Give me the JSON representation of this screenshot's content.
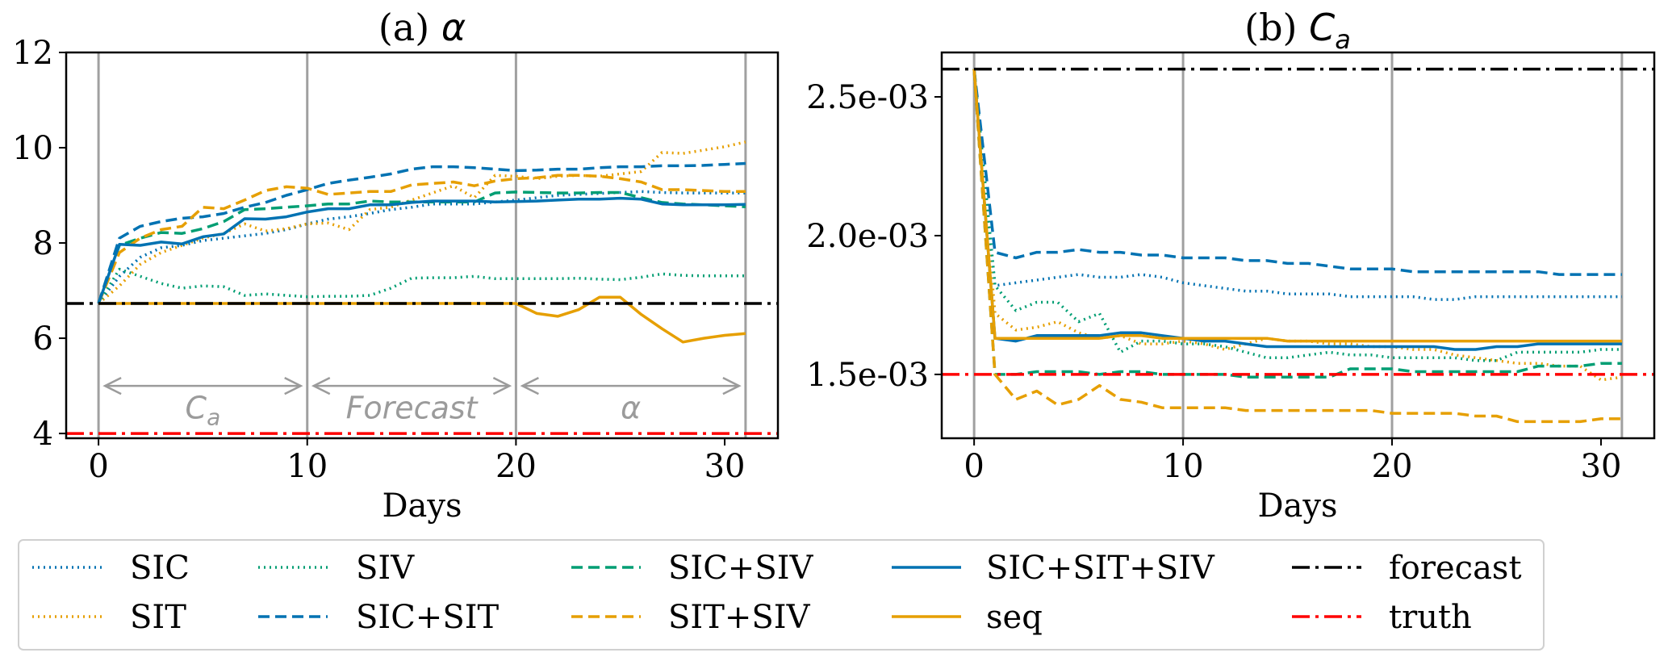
{
  "figure": {
    "legend": {
      "placement": "bottom",
      "columns": 6,
      "entries": [
        {
          "key": "SIC",
          "label": "SIC",
          "color": "#0072B2",
          "style": "dotted"
        },
        {
          "key": "SIT",
          "label": "SIT",
          "color": "#E69F00",
          "style": "dotted"
        },
        {
          "key": "SIV",
          "label": "SIV",
          "color": "#009E73",
          "style": "dotted"
        },
        {
          "key": "SIC+SIT",
          "label": "SIC+SIT",
          "color": "#0072B2",
          "style": "dashed"
        },
        {
          "key": "SIC+SIV",
          "label": "SIC+SIV",
          "color": "#009E73",
          "style": "dashed"
        },
        {
          "key": "SIT+SIV",
          "label": "SIT+SIV",
          "color": "#E69F00",
          "style": "dashed"
        },
        {
          "key": "SIC+SIT+SIV",
          "label": "SIC+SIT+SIV",
          "color": "#0072B2",
          "style": "solid"
        },
        {
          "key": "seq",
          "label": "seq",
          "color": "#E69F00",
          "style": "solid"
        },
        {
          "key": "forecast",
          "label": "forecast",
          "color": "#000000",
          "style": "dashdot"
        },
        {
          "key": "truth",
          "label": "truth",
          "color": "#FF0000",
          "style": "dashdot"
        }
      ]
    }
  },
  "chart_data": [
    {
      "type": "line",
      "id": "alpha",
      "title_prefix": "(a) ",
      "title_symbol": "α",
      "title_subscript": "",
      "xlabel": "Days",
      "ylabel": "",
      "xlim": [
        -1.55,
        32.55
      ],
      "ylim": [
        3.9,
        12
      ],
      "xticks": [
        0,
        10,
        20,
        30
      ],
      "xtick_labels": [
        "0",
        "10",
        "20",
        "30"
      ],
      "yticks": [
        4,
        6,
        8,
        10,
        12
      ],
      "ytick_labels": [
        "4",
        "6",
        "8",
        "10",
        "12"
      ],
      "grid": false,
      "vlines": [
        0,
        10,
        20,
        31
      ],
      "hlines": [
        {
          "key": "forecast",
          "value": 6.73
        },
        {
          "key": "truth",
          "value": 4.0
        }
      ],
      "annotations": [
        {
          "text": "C",
          "subscript": "a",
          "from": 0,
          "to": 10,
          "y_arrow": 5.0,
          "y_text": 4.55
        },
        {
          "text": "Forecast",
          "subscript": "",
          "from": 10,
          "to": 20,
          "y_arrow": 5.0,
          "y_text": 4.55
        },
        {
          "text": "α",
          "subscript": "",
          "from": 20,
          "to": 31,
          "y_arrow": 5.0,
          "y_text": 4.55
        }
      ],
      "x": [
        0,
        1,
        2,
        3,
        4,
        5,
        6,
        7,
        8,
        9,
        10,
        11,
        12,
        13,
        14,
        15,
        16,
        17,
        18,
        19,
        20,
        21,
        22,
        23,
        24,
        25,
        26,
        27,
        28,
        29,
        30,
        31
      ],
      "series": [
        {
          "key": "SIC",
          "values": [
            6.73,
            7.3,
            7.7,
            7.9,
            7.95,
            8.05,
            8.1,
            8.15,
            8.2,
            8.28,
            8.4,
            8.5,
            8.55,
            8.62,
            8.7,
            8.75,
            8.82,
            8.82,
            8.82,
            8.86,
            8.9,
            8.95,
            9.0,
            9.02,
            9.04,
            9.06,
            9.08,
            9.06,
            9.05,
            9.05,
            9.05,
            9.05
          ]
        },
        {
          "key": "SIT",
          "values": [
            6.73,
            7.1,
            7.55,
            7.8,
            7.95,
            8.1,
            8.2,
            8.4,
            8.25,
            8.3,
            8.4,
            8.42,
            8.28,
            8.7,
            8.75,
            8.9,
            9.05,
            9.2,
            8.95,
            9.42,
            9.4,
            9.35,
            9.4,
            9.42,
            9.4,
            9.45,
            9.5,
            9.9,
            9.88,
            9.95,
            10.02,
            10.12
          ]
        },
        {
          "key": "SIV",
          "values": [
            6.73,
            7.45,
            7.3,
            7.15,
            7.05,
            7.1,
            7.08,
            6.9,
            6.93,
            6.9,
            6.87,
            6.88,
            6.88,
            6.9,
            7.05,
            7.26,
            7.27,
            7.27,
            7.3,
            7.25,
            7.25,
            7.25,
            7.25,
            7.26,
            7.24,
            7.23,
            7.28,
            7.35,
            7.32,
            7.31,
            7.31,
            7.31
          ]
        },
        {
          "key": "SIC+SIT",
          "values": [
            6.73,
            8.1,
            8.35,
            8.45,
            8.52,
            8.55,
            8.62,
            8.75,
            8.85,
            9.0,
            9.12,
            9.25,
            9.32,
            9.38,
            9.45,
            9.55,
            9.6,
            9.6,
            9.58,
            9.55,
            9.52,
            9.53,
            9.55,
            9.55,
            9.58,
            9.6,
            9.6,
            9.62,
            9.62,
            9.63,
            9.65,
            9.67
          ]
        },
        {
          "key": "SIC+SIV",
          "values": [
            6.73,
            7.95,
            8.1,
            8.22,
            8.2,
            8.3,
            8.45,
            8.7,
            8.72,
            8.75,
            8.78,
            8.82,
            8.82,
            8.88,
            8.86,
            8.86,
            8.86,
            8.86,
            8.86,
            9.05,
            9.07,
            9.06,
            9.05,
            9.05,
            9.06,
            9.06,
            8.95,
            8.85,
            8.82,
            8.8,
            8.78,
            8.76
          ]
        },
        {
          "key": "SIT+SIV",
          "values": [
            6.73,
            7.8,
            8.1,
            8.28,
            8.35,
            8.75,
            8.72,
            8.9,
            9.1,
            9.18,
            9.15,
            9.02,
            9.05,
            9.08,
            9.08,
            9.22,
            9.25,
            9.28,
            9.2,
            9.3,
            9.35,
            9.37,
            9.42,
            9.42,
            9.4,
            9.35,
            9.28,
            9.12,
            9.12,
            9.1,
            9.08,
            9.08
          ]
        },
        {
          "key": "SIC+SIT+SIV",
          "values": [
            6.73,
            7.97,
            7.95,
            8.02,
            7.98,
            8.13,
            8.19,
            8.51,
            8.5,
            8.55,
            8.65,
            8.72,
            8.72,
            8.8,
            8.8,
            8.85,
            8.88,
            8.88,
            8.88,
            8.86,
            8.87,
            8.88,
            8.9,
            8.92,
            8.92,
            8.94,
            8.92,
            8.82,
            8.8,
            8.8,
            8.8,
            8.81
          ]
        },
        {
          "key": "seq",
          "values": [
            6.73,
            6.73,
            6.73,
            6.73,
            6.73,
            6.73,
            6.73,
            6.73,
            6.73,
            6.73,
            6.73,
            6.73,
            6.73,
            6.73,
            6.73,
            6.73,
            6.73,
            6.73,
            6.73,
            6.73,
            6.73,
            6.52,
            6.46,
            6.6,
            6.86,
            6.86,
            6.5,
            6.2,
            5.92,
            6.0,
            6.06,
            6.1
          ]
        }
      ]
    },
    {
      "type": "line",
      "id": "Ca",
      "title_prefix": "(b) ",
      "title_symbol": "C",
      "title_subscript": "a",
      "xlabel": "Days",
      "ylabel": "",
      "xlim": [
        -1.55,
        32.55
      ],
      "ylim": [
        0.00127,
        0.00266
      ],
      "xticks": [
        0,
        10,
        20,
        30
      ],
      "xtick_labels": [
        "0",
        "10",
        "20",
        "30"
      ],
      "yticks": [
        0.0015,
        0.002,
        0.0025
      ],
      "ytick_labels": [
        "1.5e-03",
        "2.0e-03",
        "2.5e-03"
      ],
      "grid": false,
      "vlines": [
        0,
        10,
        20,
        31
      ],
      "hlines": [
        {
          "key": "forecast",
          "value": 0.0026
        },
        {
          "key": "truth",
          "value": 0.0015
        }
      ],
      "annotations": [],
      "x": [
        0,
        1,
        2,
        3,
        4,
        5,
        6,
        7,
        8,
        9,
        10,
        11,
        12,
        13,
        14,
        15,
        16,
        17,
        18,
        19,
        20,
        21,
        22,
        23,
        24,
        25,
        26,
        27,
        28,
        29,
        30,
        31
      ],
      "series": [
        {
          "key": "SIC",
          "values": [
            0.0026,
            0.00182,
            0.00183,
            0.00184,
            0.00185,
            0.00186,
            0.00185,
            0.00185,
            0.00186,
            0.00185,
            0.00183,
            0.00182,
            0.00181,
            0.0018,
            0.0018,
            0.00179,
            0.00179,
            0.00179,
            0.00178,
            0.00178,
            0.00178,
            0.00178,
            0.00177,
            0.00177,
            0.00178,
            0.00178,
            0.00178,
            0.00178,
            0.00178,
            0.00178,
            0.00178,
            0.00178
          ]
        },
        {
          "key": "SIT",
          "values": [
            0.0026,
            0.00172,
            0.00166,
            0.00167,
            0.00169,
            0.00165,
            0.00163,
            0.00164,
            0.00161,
            0.00161,
            0.00162,
            0.00161,
            0.00159,
            0.00161,
            0.00163,
            0.00162,
            0.00162,
            0.00161,
            0.00161,
            0.0016,
            0.0016,
            0.00159,
            0.00159,
            0.00157,
            0.00156,
            0.00155,
            0.00154,
            0.00154,
            0.00153,
            0.00153,
            0.00148,
            0.00149
          ]
        },
        {
          "key": "SIV",
          "values": [
            0.0026,
            0.00182,
            0.00173,
            0.00176,
            0.00176,
            0.00169,
            0.00172,
            0.00158,
            0.00162,
            0.00162,
            0.00161,
            0.00161,
            0.0016,
            0.00158,
            0.00156,
            0.00156,
            0.00157,
            0.00158,
            0.00157,
            0.00157,
            0.00156,
            0.00156,
            0.00156,
            0.00156,
            0.00155,
            0.00155,
            0.00158,
            0.00158,
            0.00158,
            0.00158,
            0.00159,
            0.00159
          ]
        },
        {
          "key": "SIC+SIT",
          "values": [
            0.0026,
            0.00194,
            0.00192,
            0.00194,
            0.00194,
            0.00195,
            0.00194,
            0.00194,
            0.00193,
            0.00193,
            0.00192,
            0.00192,
            0.00192,
            0.00191,
            0.00191,
            0.0019,
            0.0019,
            0.00189,
            0.00188,
            0.00188,
            0.00188,
            0.00187,
            0.00187,
            0.00187,
            0.00187,
            0.00187,
            0.00187,
            0.00187,
            0.00186,
            0.00186,
            0.00186,
            0.00186
          ]
        },
        {
          "key": "SIC+SIV",
          "values": [
            0.0026,
            0.0015,
            0.0015,
            0.00151,
            0.00151,
            0.00151,
            0.0015,
            0.00151,
            0.00151,
            0.0015,
            0.0015,
            0.0015,
            0.0015,
            0.00149,
            0.00149,
            0.00149,
            0.00149,
            0.00149,
            0.00152,
            0.00152,
            0.00152,
            0.00151,
            0.00151,
            0.00151,
            0.00151,
            0.00151,
            0.00151,
            0.00153,
            0.00153,
            0.00153,
            0.00154,
            0.00154
          ]
        },
        {
          "key": "SIT+SIV",
          "values": [
            0.0026,
            0.0015,
            0.00141,
            0.00144,
            0.00139,
            0.00141,
            0.00146,
            0.00141,
            0.0014,
            0.00138,
            0.00138,
            0.00138,
            0.00138,
            0.00137,
            0.00137,
            0.00137,
            0.00137,
            0.00137,
            0.00137,
            0.00137,
            0.00136,
            0.00136,
            0.00136,
            0.00136,
            0.00135,
            0.00135,
            0.00133,
            0.00133,
            0.00133,
            0.00133,
            0.00134,
            0.00134
          ]
        },
        {
          "key": "SIC+SIT+SIV",
          "values": [
            0.0026,
            0.00163,
            0.00162,
            0.00164,
            0.00164,
            0.00164,
            0.00164,
            0.00165,
            0.00165,
            0.00164,
            0.00163,
            0.00162,
            0.00162,
            0.00161,
            0.0016,
            0.0016,
            0.0016,
            0.0016,
            0.0016,
            0.0016,
            0.0016,
            0.0016,
            0.0016,
            0.00159,
            0.00159,
            0.0016,
            0.0016,
            0.00161,
            0.00161,
            0.00161,
            0.00161,
            0.00161
          ]
        },
        {
          "key": "seq",
          "values": [
            0.0026,
            0.00163,
            0.00163,
            0.00163,
            0.00163,
            0.00163,
            0.00163,
            0.00164,
            0.00164,
            0.00163,
            0.00163,
            0.00163,
            0.00163,
            0.00163,
            0.00163,
            0.00162,
            0.00162,
            0.00162,
            0.00162,
            0.00162,
            0.00162,
            0.00162,
            0.00162,
            0.00162,
            0.00162,
            0.00162,
            0.00162,
            0.00162,
            0.00162,
            0.00162,
            0.00162,
            0.00162
          ]
        }
      ]
    }
  ]
}
